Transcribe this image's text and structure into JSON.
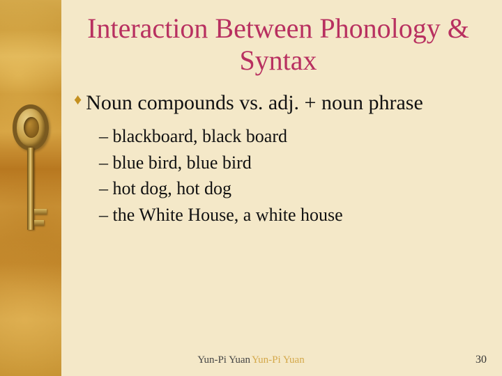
{
  "title": "Interaction Between Phonology & Syntax",
  "bullet": {
    "text": "Noun compounds vs. adj. + noun phrase"
  },
  "subitems": [
    "– blackboard, black board",
    "– blue bird, blue bird",
    "– hot dog, hot dog",
    "– the White House, a white house"
  ],
  "author": "Yun-Pi Yuan",
  "author_shadow": "Yun-Pi Yuan",
  "page_number": "30",
  "colors": {
    "title": "#b83060",
    "diamond": "#c49020",
    "background": "#f4e8c8"
  }
}
